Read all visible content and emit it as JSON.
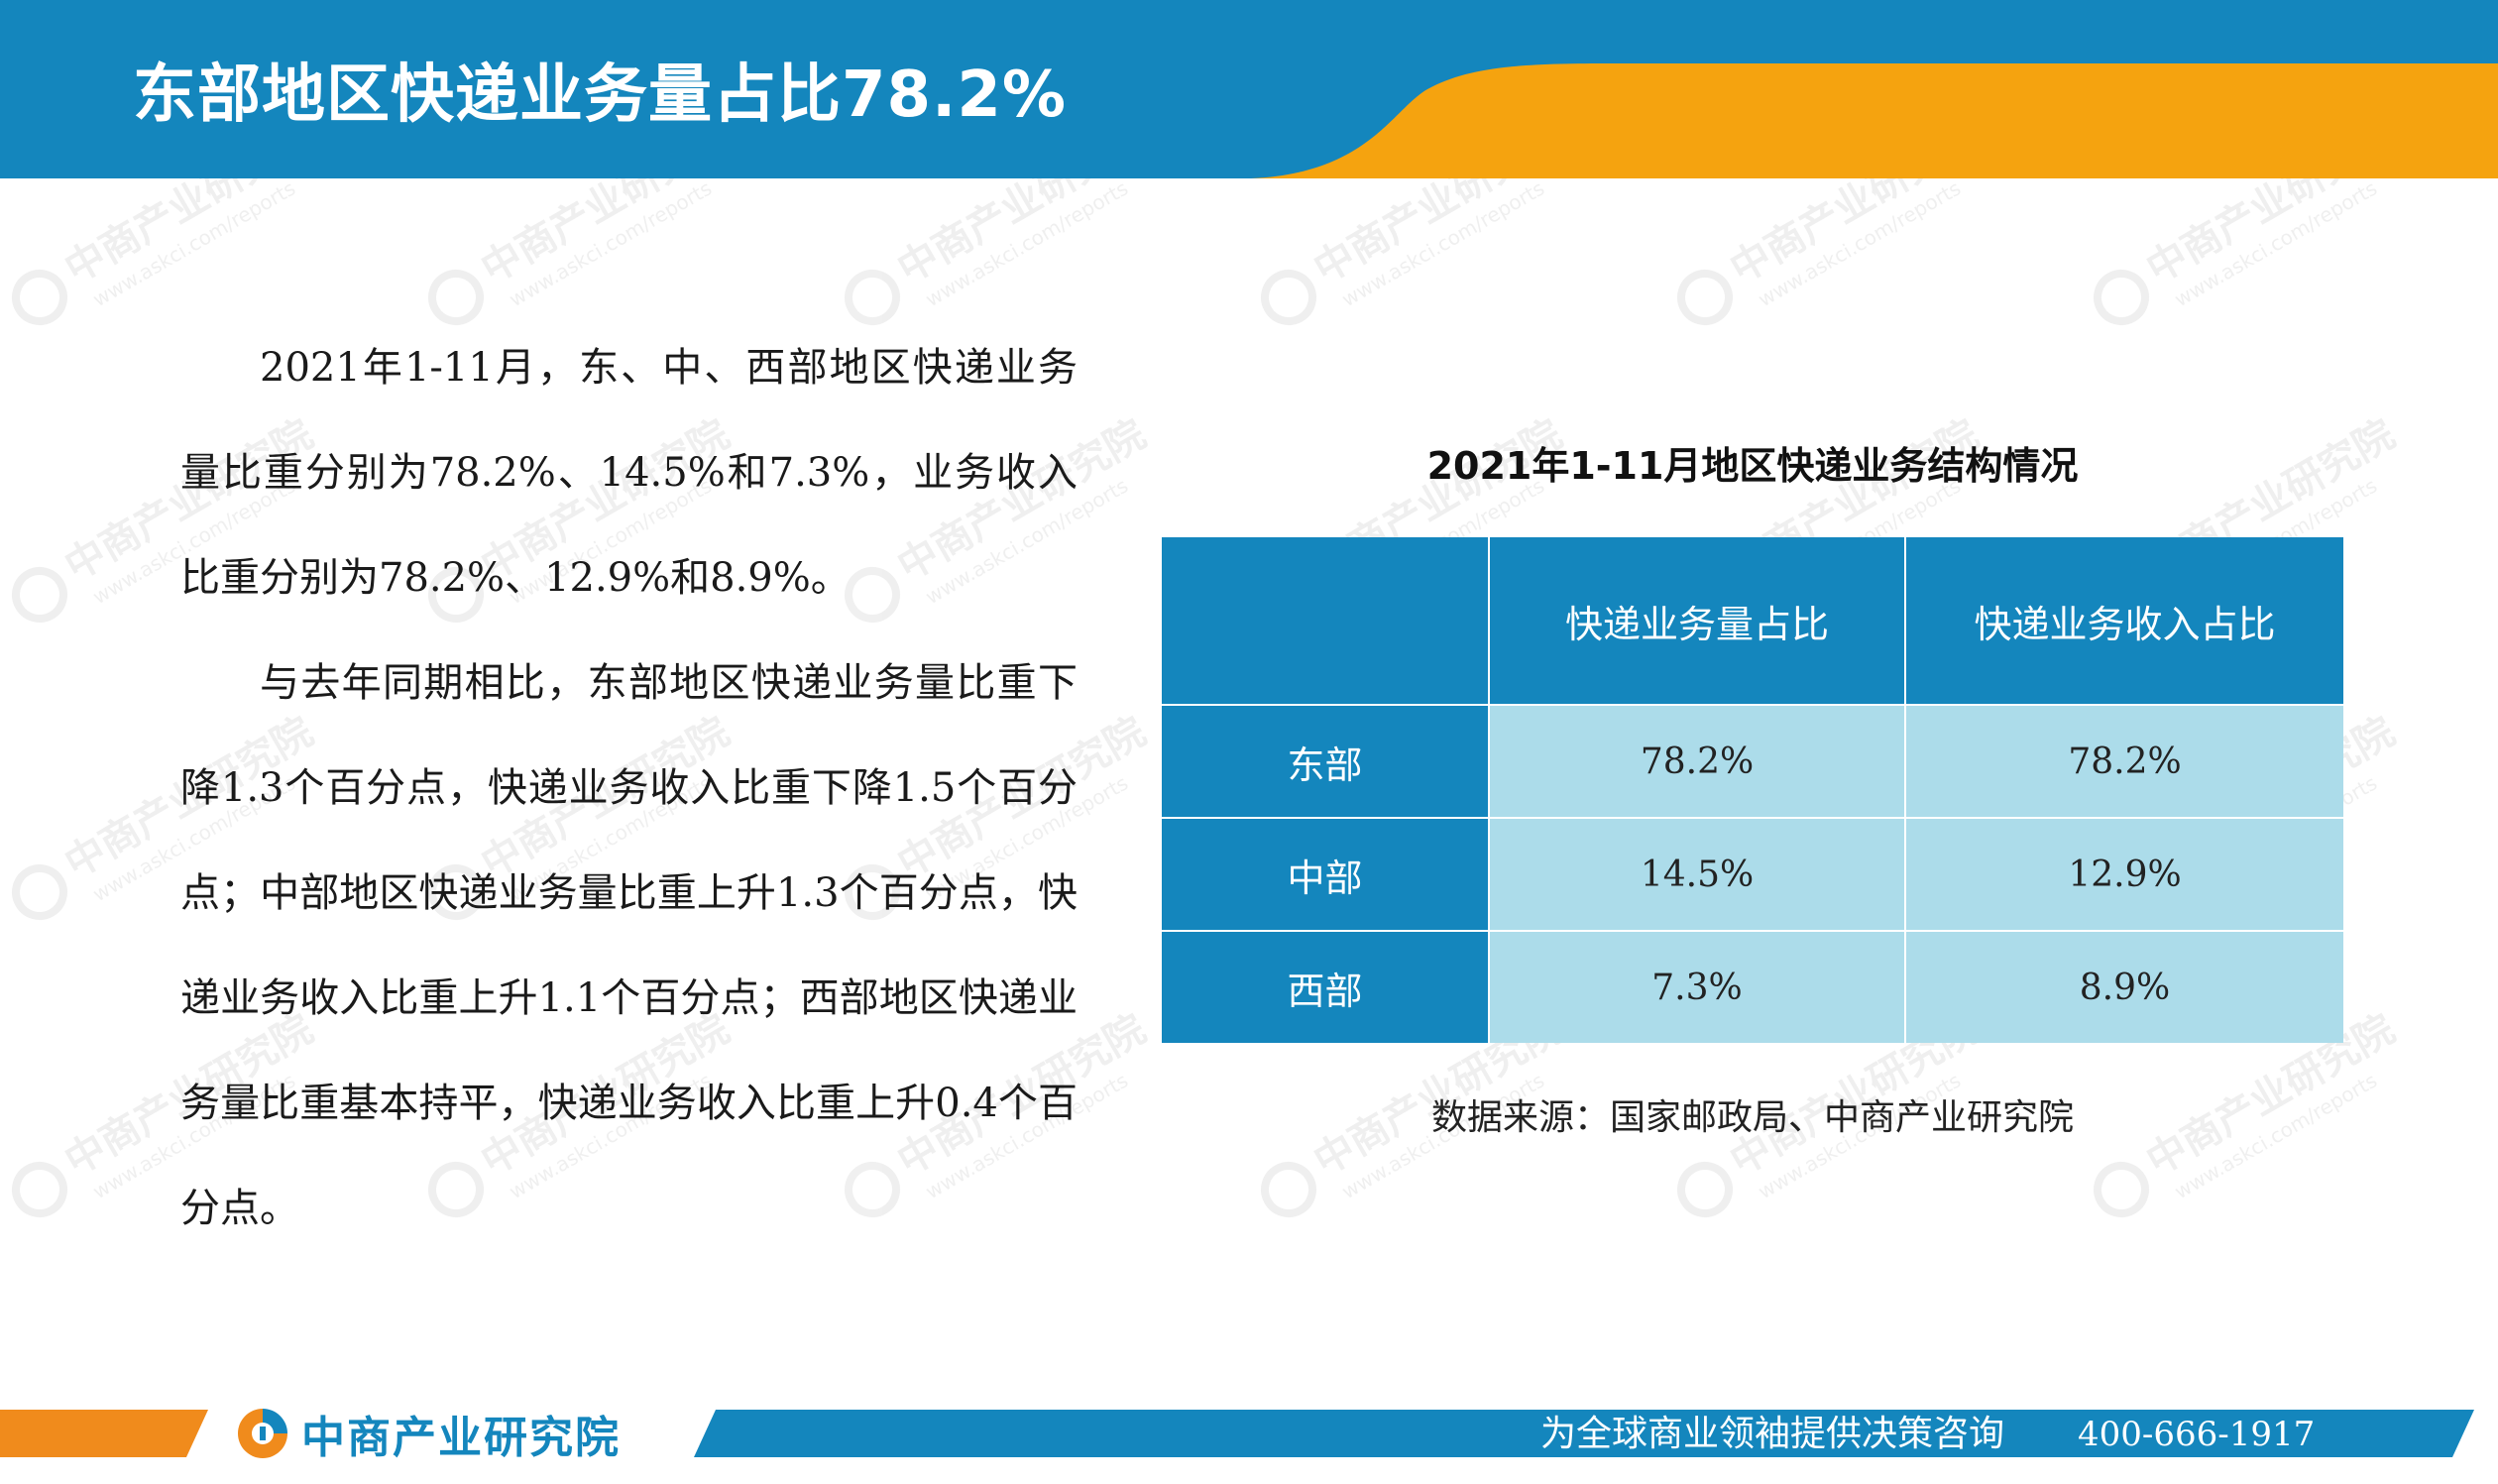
{
  "header": {
    "title": "东部地区快递业务量占比78.2%"
  },
  "body": {
    "paragraphs": [
      "2021年1-11月，东、中、西部地区快递业务量比重分别为78.2%、14.5%和7.3%，业务收入比重分别为78.2%、12.9%和8.9%。",
      "与去年同期相比，东部地区快递业务量比重下降1.3个百分点，快递业务收入比重下降1.5个百分点；中部地区快递业务量比重上升1.3个百分点，快递业务收入比重上升1.1个百分点；西部地区快递业务量比重基本持平，快递业务收入比重上升0.4个百分点。"
    ]
  },
  "table": {
    "title": "2021年1-11月地区快递业务结构情况",
    "columns": [
      "",
      "快递业务量占比",
      "快递业务收入占比"
    ],
    "rows": [
      {
        "region": "东部",
        "volume_share": "78.2%",
        "revenue_share": "78.2%"
      },
      {
        "region": "中部",
        "volume_share": "14.5%",
        "revenue_share": "12.9%"
      },
      {
        "region": "西部",
        "volume_share": "7.3%",
        "revenue_share": "8.9%"
      }
    ],
    "source": "数据来源：国家邮政局、中商产业研究院"
  },
  "footer": {
    "brand": "中商产业研究院",
    "slogan": "为全球商业领袖提供决策咨询",
    "phone": "400-666-1917"
  },
  "watermark": {
    "brand": "中商产业研究院",
    "url": "www.askci.com/reports"
  },
  "colors": {
    "primary_blue": "#1486bd",
    "accent_orange": "#f5a30f",
    "cell_light_blue": "#acdcea",
    "footer_orange": "#f08b1c"
  }
}
